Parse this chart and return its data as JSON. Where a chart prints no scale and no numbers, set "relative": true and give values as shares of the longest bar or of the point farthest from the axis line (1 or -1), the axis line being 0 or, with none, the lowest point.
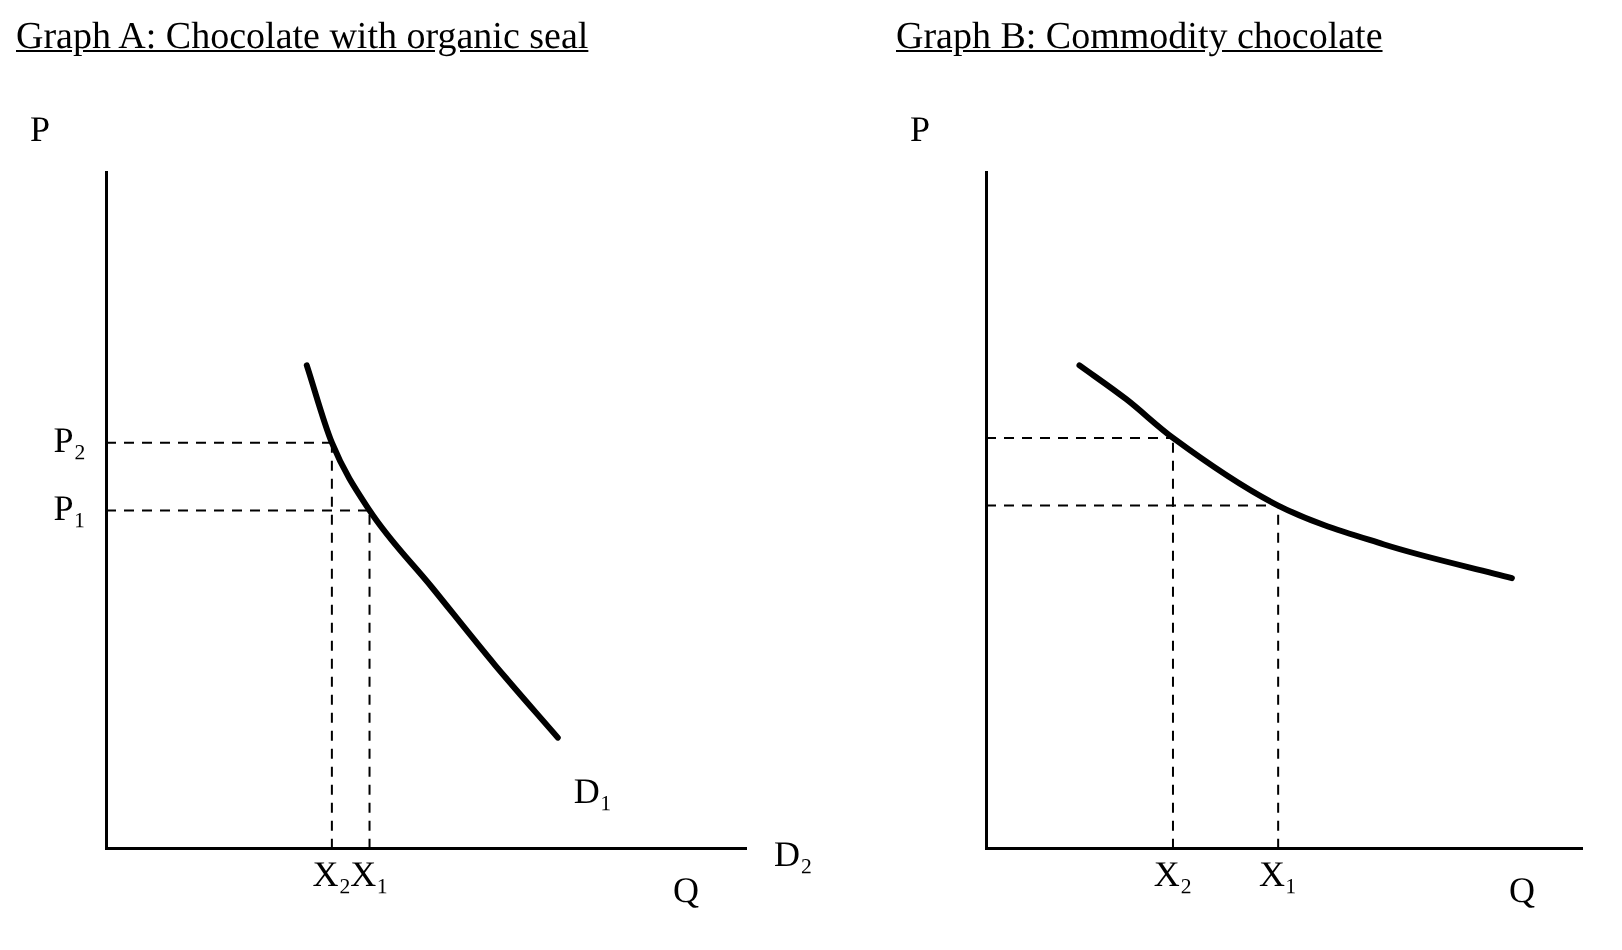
{
  "chart_data": [
    {
      "type": "line",
      "title": "Graph A: Chocolate with organic seal",
      "xlabel": "Q",
      "ylabel": "P",
      "relative": true,
      "categories": [
        null,
        null,
        null,
        null,
        null,
        null,
        null,
        null,
        null,
        null,
        null,
        null,
        null,
        null,
        null,
        null,
        null,
        null,
        "X₂",
        null,
        null,
        "X₁",
        null,
        null,
        null,
        null,
        null,
        null,
        null,
        null,
        null,
        null,
        null,
        null,
        null,
        null,
        null,
        null,
        null,
        null,
        null,
        null,
        null,
        null,
        null,
        null,
        null,
        null,
        null,
        null,
        null,
        null
      ],
      "series": [
        {
          "name": "D₁",
          "color": "#000000",
          "values": [
            null,
            null,
            null,
            null,
            null,
            null,
            null,
            null,
            null,
            null,
            null,
            null,
            null,
            null,
            null,
            null,
            1,
            null,
            0.84,
            null,
            null,
            0.7,
            null,
            null,
            null,
            null,
            0.54,
            null,
            null,
            null,
            null,
            0.38,
            null,
            null,
            null,
            null,
            0.23,
            null,
            null,
            null,
            null,
            null,
            null,
            null,
            null,
            null,
            null,
            null,
            null,
            null,
            null,
            null
          ]
        }
      ],
      "ref_lines": [
        {
          "axis": "y",
          "value": 0.84,
          "label": "P₂",
          "line_style": "dashed"
        },
        {
          "axis": "y",
          "value": 0.7,
          "label": "P₁",
          "line_style": "dashed"
        },
        {
          "axis": "x",
          "value": "X₂",
          "line_style": "dashed"
        },
        {
          "axis": "x",
          "value": "X₁",
          "line_style": "dashed"
        }
      ],
      "annotations": [
        "D₂"
      ],
      "legend": false,
      "marker": "none",
      "line_style": "solid"
    },
    {
      "type": "line",
      "title": "Graph B: Commodity chocolate",
      "xlabel": "Q",
      "ylabel": "P",
      "relative": true,
      "categories": [
        null,
        null,
        null,
        null,
        null,
        null,
        null,
        null,
        null,
        null,
        null,
        null,
        null,
        null,
        null,
        null,
        "X₂",
        null,
        null,
        null,
        null,
        null,
        null,
        null,
        null,
        "X₁",
        null,
        null,
        null,
        null,
        null,
        null,
        null,
        null,
        null,
        null,
        null,
        null,
        null,
        null,
        null,
        null,
        null,
        null,
        null,
        null,
        null,
        null,
        null,
        null,
        null,
        null
      ],
      "series": [
        {
          "color": "#000000",
          "values": [
            null,
            null,
            null,
            null,
            null,
            null,
            null,
            null,
            1,
            null,
            null,
            null,
            0.93,
            null,
            null,
            null,
            0.85,
            null,
            null,
            null,
            null,
            null,
            null,
            null,
            null,
            0.71,
            null,
            null,
            null,
            null,
            null,
            null,
            null,
            null,
            0.63,
            null,
            null,
            null,
            null,
            null,
            null,
            null,
            null,
            null,
            null,
            0.56,
            null,
            null,
            null,
            null,
            null,
            null
          ]
        }
      ],
      "ref_lines": [
        {
          "axis": "y",
          "value": 0.85,
          "line_style": "dashed"
        },
        {
          "axis": "y",
          "value": 0.71,
          "line_style": "dashed"
        },
        {
          "axis": "x",
          "value": "X₂",
          "line_style": "dashed"
        },
        {
          "axis": "x",
          "value": "X₁",
          "line_style": "dashed"
        }
      ],
      "legend": false,
      "marker": "none",
      "line_style": "solid"
    }
  ]
}
